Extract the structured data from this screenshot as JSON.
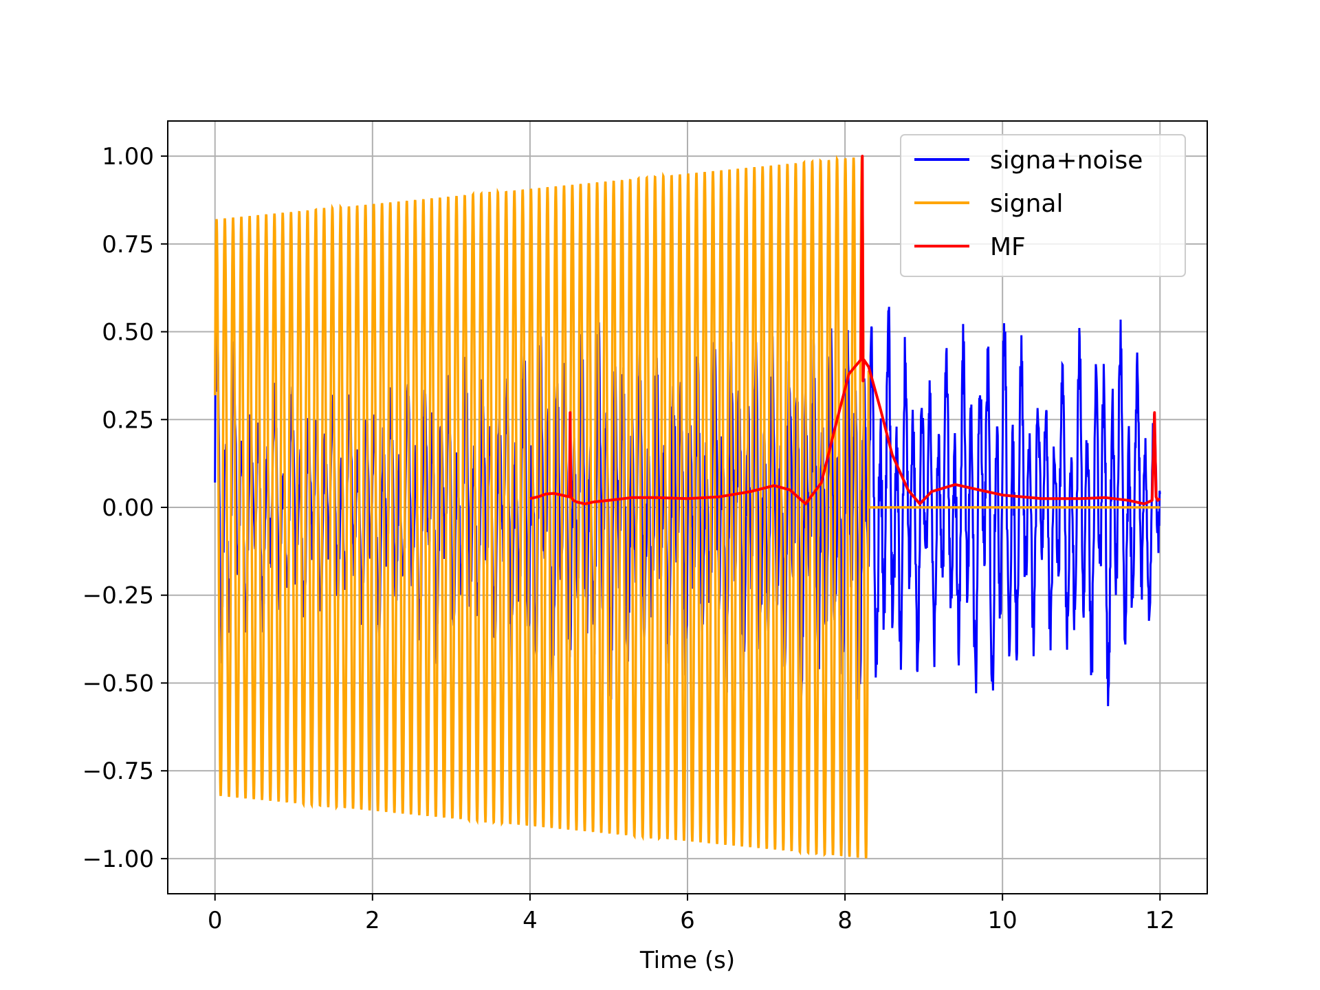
{
  "chart_data": {
    "type": "line",
    "title": "",
    "xlabel": "Time (s)",
    "ylabel": "",
    "xlim": [
      -0.6,
      12.6
    ],
    "ylim": [
      -1.1,
      1.1
    ],
    "grid": true,
    "legend_position": "top-right",
    "x_ticks": [
      0,
      2,
      4,
      6,
      8,
      10,
      12
    ],
    "x_tick_labels": [
      "0",
      "2",
      "4",
      "6",
      "8",
      "10",
      "12"
    ],
    "y_ticks": [
      1.0,
      0.75,
      0.5,
      0.25,
      0.0,
      -0.25,
      -0.5,
      -0.75,
      -1.0
    ],
    "y_tick_labels": [
      "1.00",
      "0.75",
      "0.50",
      "0.25",
      "0.00",
      "−0.25",
      "−0.50",
      "−0.75",
      "−1.00"
    ],
    "series": [
      {
        "name": "signa+noise",
        "color": "#0000ff",
        "description_of_shape": "noisy oscillation between 0 and 12 s",
        "x": [
          0,
          0.5,
          1,
          1.5,
          2,
          2.5,
          3,
          3.5,
          4,
          4.5,
          5,
          5.5,
          6,
          6.5,
          7,
          7.5,
          8,
          8.5,
          9,
          9.5,
          10,
          10.5,
          11,
          11.5,
          12
        ],
        "y_envelope": [
          0.62,
          0.35,
          0.4,
          0.35,
          0.38,
          0.42,
          0.45,
          0.4,
          0.55,
          0.5,
          0.6,
          0.45,
          0.5,
          0.55,
          0.5,
          0.55,
          0.6,
          0.62,
          0.45,
          0.55,
          0.63,
          0.4,
          0.55,
          0.6,
          0.3
        ]
      },
      {
        "name": "signal",
        "color": "#ffa500",
        "x_start": 0,
        "x_end": 8.3,
        "amplitude_start": 0.82,
        "amplitude_end": 1.0,
        "cycles": 79,
        "value_after_end": 0.0
      },
      {
        "name": "MF",
        "color": "#ff0000",
        "x": [
          4.0,
          4.1,
          4.2,
          4.3,
          4.4,
          4.5,
          4.51,
          4.52,
          4.55,
          4.6,
          4.7,
          4.8,
          5.0,
          5.3,
          5.6,
          6.0,
          6.4,
          6.8,
          7.1,
          7.3,
          7.5,
          7.7,
          7.9,
          8.05,
          8.2,
          8.22,
          8.23,
          8.24,
          8.3,
          8.45,
          8.6,
          8.8,
          8.95,
          9.1,
          9.4,
          9.7,
          10.0,
          10.5,
          11.0,
          11.3,
          11.6,
          11.8,
          11.9,
          11.93,
          11.95,
          11.97,
          12.0
        ],
        "y": [
          0.025,
          0.03,
          0.038,
          0.04,
          0.035,
          0.03,
          0.27,
          0.03,
          0.02,
          0.015,
          0.01,
          0.015,
          0.02,
          0.028,
          0.028,
          0.025,
          0.03,
          0.045,
          0.062,
          0.05,
          0.01,
          0.07,
          0.25,
          0.38,
          0.42,
          1.0,
          0.36,
          0.42,
          0.4,
          0.28,
          0.15,
          0.05,
          0.01,
          0.045,
          0.065,
          0.05,
          0.035,
          0.025,
          0.025,
          0.028,
          0.02,
          0.01,
          0.02,
          0.27,
          0.03,
          0.02,
          0.025
        ]
      }
    ],
    "legend": [
      "signa+noise",
      "signal",
      "MF"
    ]
  }
}
